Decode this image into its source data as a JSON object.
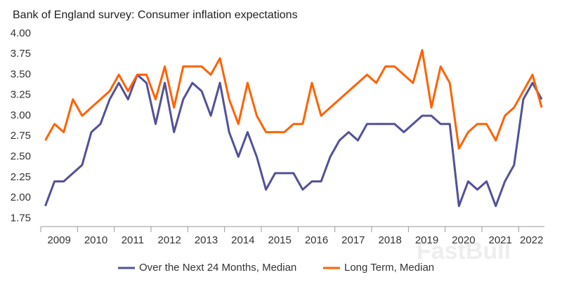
{
  "chart_data": {
    "type": "line",
    "title": "Bank of England survey: Consumer inflation expectations",
    "watermark": "FastBull",
    "x": [
      2009.125,
      2009.375,
      2009.625,
      2009.875,
      2010.125,
      2010.375,
      2010.625,
      2010.875,
      2011.125,
      2011.375,
      2011.625,
      2011.875,
      2012.125,
      2012.375,
      2012.625,
      2012.875,
      2013.125,
      2013.375,
      2013.625,
      2013.875,
      2014.125,
      2014.375,
      2014.625,
      2014.875,
      2015.125,
      2015.375,
      2015.625,
      2015.875,
      2016.125,
      2016.375,
      2016.625,
      2016.875,
      2017.125,
      2017.375,
      2017.625,
      2017.875,
      2018.125,
      2018.375,
      2018.625,
      2018.875,
      2019.125,
      2019.375,
      2019.625,
      2019.875,
      2020.125,
      2020.375,
      2020.625,
      2020.875,
      2021.125,
      2021.375,
      2021.625,
      2021.875,
      2022.125,
      2022.375,
      2022.625
    ],
    "series": [
      {
        "name": "Over the Next 24 Months, Median",
        "color": "#525199",
        "values": [
          1.9,
          2.2,
          2.2,
          2.3,
          2.4,
          2.8,
          2.9,
          3.2,
          3.4,
          3.2,
          3.5,
          3.4,
          2.9,
          3.4,
          2.8,
          3.2,
          3.4,
          3.3,
          3.0,
          3.4,
          2.8,
          2.5,
          2.8,
          2.5,
          2.1,
          2.3,
          2.3,
          2.3,
          2.1,
          2.2,
          2.2,
          2.5,
          2.7,
          2.8,
          2.7,
          2.9,
          2.9,
          2.9,
          2.9,
          2.8,
          2.9,
          3.0,
          3.0,
          2.9,
          2.9,
          1.9,
          2.2,
          2.1,
          2.2,
          1.9,
          2.2,
          2.4,
          3.2,
          3.4,
          3.2
        ]
      },
      {
        "name": "Long Term, Median",
        "color": "#ff6200",
        "values": [
          2.7,
          2.9,
          2.8,
          3.2,
          3.0,
          3.1,
          3.2,
          3.3,
          3.5,
          3.3,
          3.5,
          3.5,
          3.2,
          3.6,
          3.1,
          3.6,
          3.6,
          3.6,
          3.5,
          3.7,
          3.2,
          2.9,
          3.4,
          3.0,
          2.8,
          2.8,
          2.8,
          2.9,
          2.9,
          3.4,
          3.0,
          3.1,
          3.2,
          3.3,
          3.4,
          3.5,
          3.4,
          3.6,
          3.6,
          3.5,
          3.4,
          3.8,
          3.1,
          3.6,
          3.4,
          2.6,
          2.8,
          2.9,
          2.9,
          2.7,
          3.0,
          3.1,
          3.3,
          3.5,
          3.1
        ]
      }
    ],
    "xlim": [
      2009,
      2022.7
    ],
    "xticks": [
      {
        "value": 2009.5,
        "label": "2009"
      },
      {
        "value": 2010.5,
        "label": "2010"
      },
      {
        "value": 2011.5,
        "label": "2011"
      },
      {
        "value": 2012.5,
        "label": "2012"
      },
      {
        "value": 2013.5,
        "label": "2013"
      },
      {
        "value": 2014.5,
        "label": "2014"
      },
      {
        "value": 2015.5,
        "label": "2015"
      },
      {
        "value": 2016.5,
        "label": "2016"
      },
      {
        "value": 2017.5,
        "label": "2017"
      },
      {
        "value": 2018.5,
        "label": "2018"
      },
      {
        "value": 2019.5,
        "label": "2019"
      },
      {
        "value": 2020.5,
        "label": "2020"
      },
      {
        "value": 2021.5,
        "label": "2021"
      },
      {
        "value": 2022.35,
        "label": "2022"
      }
    ],
    "ylim": [
      1.65,
      4.0
    ],
    "yticks": [
      {
        "value": 1.75,
        "label": "1.75"
      },
      {
        "value": 2,
        "label": "2.00"
      },
      {
        "value": 2.25,
        "label": "2.25"
      },
      {
        "value": 2.5,
        "label": "2.50"
      },
      {
        "value": 2.75,
        "label": "2.75"
      },
      {
        "value": 3,
        "label": "3.00"
      },
      {
        "value": 3.25,
        "label": "3.25"
      },
      {
        "value": 3.5,
        "label": "3.50"
      },
      {
        "value": 3.75,
        "label": "3.75"
      },
      {
        "value": 4,
        "label": "4.00"
      }
    ],
    "grid": false,
    "legend": "bottom"
  }
}
